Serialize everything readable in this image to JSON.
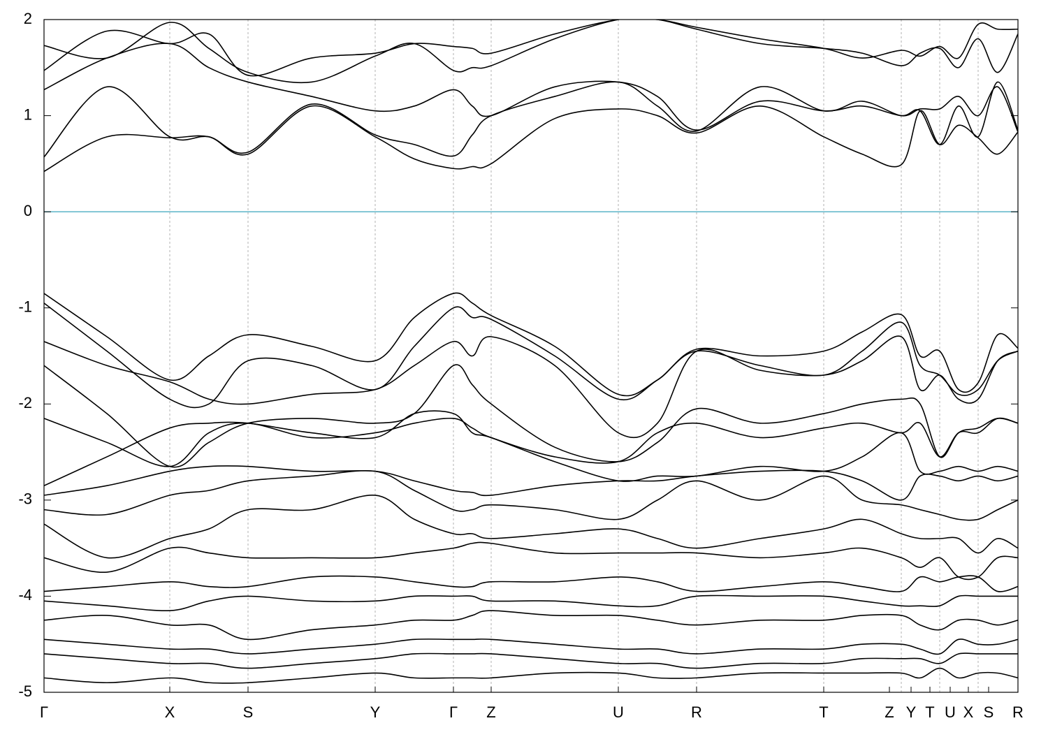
{
  "chart_data": {
    "type": "line",
    "color": "#000000",
    "xlim": [
      0,
      139.4
    ],
    "ylim": [
      -5,
      2
    ],
    "yticks": [
      -5,
      -4,
      -3,
      -2,
      -1,
      0,
      1,
      2
    ],
    "xticks": [
      {
        "value": 0,
        "label": "Γ"
      },
      {
        "value": 18.0,
        "label": "X"
      },
      {
        "value": 29.2,
        "label": "S"
      },
      {
        "value": 47.4,
        "label": "Y"
      },
      {
        "value": 58.6,
        "label": "Γ"
      },
      {
        "value": 64.0,
        "label": "Z"
      },
      {
        "value": 82.2,
        "label": "U"
      },
      {
        "value": 93.4,
        "label": "R"
      },
      {
        "value": 111.6,
        "label": "T"
      },
      {
        "value": 121.0,
        "label": "Z"
      },
      {
        "value": 124.1,
        "label": "Y"
      },
      {
        "value": 126.8,
        "label": "T"
      },
      {
        "value": 129.7,
        "label": "U"
      },
      {
        "value": 132.3,
        "label": "X"
      },
      {
        "value": 135.2,
        "label": "S"
      },
      {
        "value": 139.4,
        "label": "R"
      }
    ],
    "segment_lines": [
      18.0,
      29.2,
      47.4,
      58.6,
      64.0,
      82.2,
      93.4,
      111.6,
      122.7,
      128.2,
      133.7
    ],
    "fermi_level": {
      "value": 0,
      "color": "#5ab4c8"
    },
    "x": [
      0,
      9,
      18,
      23.6,
      29.2,
      38.3,
      47.4,
      53,
      58.6,
      61.3,
      64,
      73.1,
      82.2,
      87.8,
      93.4,
      102.5,
      111.6,
      117.1,
      122.7,
      125.4,
      128.2,
      130.9,
      133.7,
      136.5,
      139.4
    ],
    "series": [
      {
        "values": [
          0.42,
          0.78,
          0.77,
          0.78,
          0.6,
          1.1,
          0.78,
          0.55,
          0.45,
          0.47,
          0.5,
          0.97,
          1.07,
          1.0,
          0.82,
          1.1,
          0.78,
          0.6,
          0.49,
          1.05,
          0.7,
          0.9,
          0.77,
          0.6,
          0.83
        ]
      },
      {
        "values": [
          0.57,
          1.3,
          0.78,
          0.78,
          0.62,
          1.12,
          0.8,
          0.7,
          0.58,
          0.8,
          1.0,
          1.2,
          1.35,
          1.1,
          0.84,
          1.3,
          1.05,
          1.15,
          1.0,
          1.07,
          1.07,
          1.2,
          1.0,
          1.3,
          0.83
        ]
      },
      {
        "values": [
          1.27,
          1.6,
          1.75,
          1.5,
          1.35,
          1.2,
          1.05,
          1.1,
          1.27,
          1.1,
          1.0,
          1.3,
          1.35,
          1.2,
          0.85,
          1.15,
          1.05,
          1.1,
          1.0,
          1.05,
          0.7,
          1.1,
          0.78,
          1.35,
          0.85
        ]
      },
      {
        "values": [
          1.73,
          1.6,
          1.97,
          1.7,
          1.45,
          1.35,
          1.62,
          1.75,
          1.47,
          1.5,
          1.52,
          1.8,
          2.0,
          2.0,
          1.9,
          1.75,
          1.7,
          1.65,
          1.52,
          1.65,
          1.7,
          1.5,
          1.8,
          1.45,
          1.85
        ]
      },
      {
        "values": [
          1.47,
          1.88,
          1.75,
          1.85,
          1.42,
          1.6,
          1.65,
          1.75,
          1.72,
          1.7,
          1.65,
          1.85,
          2.0,
          2.0,
          1.92,
          1.8,
          1.7,
          1.6,
          1.68,
          1.62,
          1.72,
          1.6,
          1.95,
          1.9,
          1.9
        ]
      },
      {
        "values": [
          -0.85,
          -1.3,
          -1.75,
          -1.5,
          -1.28,
          -1.4,
          -1.55,
          -1.1,
          -0.85,
          -0.95,
          -1.08,
          -1.4,
          -1.9,
          -1.75,
          -1.43,
          -1.5,
          -1.45,
          -1.25,
          -1.07,
          -1.5,
          -1.45,
          -1.85,
          -1.78,
          -1.28,
          -1.42
        ]
      },
      {
        "values": [
          -0.95,
          -1.45,
          -1.95,
          -2.0,
          -1.55,
          -1.6,
          -1.85,
          -1.4,
          -1.0,
          -1.1,
          -1.12,
          -1.5,
          -1.95,
          -1.75,
          -1.45,
          -1.6,
          -1.7,
          -1.45,
          -1.15,
          -1.6,
          -1.7,
          -1.9,
          -1.85,
          -1.55,
          -1.45
        ]
      },
      {
        "values": [
          -1.35,
          -1.6,
          -1.77,
          -1.95,
          -2.0,
          -1.9,
          -1.85,
          -1.6,
          -1.35,
          -1.5,
          -1.3,
          -1.6,
          -2.3,
          -2.2,
          -1.45,
          -1.65,
          -1.7,
          -1.55,
          -1.3,
          -1.85,
          -1.7,
          -1.95,
          -1.95,
          -1.55,
          -1.45
        ]
      },
      {
        "values": [
          -1.6,
          -2.1,
          -2.65,
          -2.4,
          -2.2,
          -2.15,
          -2.2,
          -2.1,
          -1.6,
          -1.8,
          -2.0,
          -2.45,
          -2.6,
          -2.4,
          -2.05,
          -2.2,
          -2.1,
          -2.0,
          -1.95,
          -2.0,
          -2.55,
          -2.3,
          -2.25,
          -2.15,
          -2.2
        ]
      },
      {
        "values": [
          -2.15,
          -2.4,
          -2.65,
          -2.3,
          -2.2,
          -2.35,
          -2.3,
          -2.2,
          -2.15,
          -2.25,
          -2.35,
          -2.55,
          -2.6,
          -2.3,
          -2.2,
          -2.35,
          -2.25,
          -2.2,
          -2.3,
          -2.2,
          -2.55,
          -2.3,
          -2.3,
          -2.15,
          -2.2
        ]
      },
      {
        "values": [
          -2.85,
          -2.55,
          -2.25,
          -2.2,
          -2.2,
          -2.3,
          -2.35,
          -2.1,
          -2.1,
          -2.3,
          -2.35,
          -2.6,
          -2.8,
          -2.75,
          -2.75,
          -2.65,
          -2.7,
          -2.55,
          -2.3,
          -2.7,
          -2.7,
          -2.65,
          -2.7,
          -2.65,
          -2.7
        ]
      },
      {
        "values": [
          -2.95,
          -2.85,
          -2.7,
          -2.65,
          -2.65,
          -2.7,
          -2.7,
          -2.8,
          -2.9,
          -2.92,
          -2.95,
          -2.85,
          -2.8,
          -2.8,
          -2.75,
          -2.7,
          -2.7,
          -2.8,
          -3.0,
          -2.75,
          -2.75,
          -2.8,
          -2.75,
          -2.8,
          -2.75
        ]
      },
      {
        "values": [
          -3.1,
          -3.15,
          -2.95,
          -2.9,
          -2.8,
          -2.75,
          -2.7,
          -2.9,
          -3.1,
          -3.1,
          -3.05,
          -3.1,
          -3.2,
          -3.0,
          -2.8,
          -3.0,
          -2.75,
          -3.0,
          -3.05,
          -3.1,
          -3.15,
          -3.2,
          -3.2,
          -3.1,
          -3.0
        ]
      },
      {
        "values": [
          -3.25,
          -3.6,
          -3.4,
          -3.3,
          -3.1,
          -3.1,
          -2.95,
          -3.2,
          -3.35,
          -3.35,
          -3.4,
          -3.35,
          -3.3,
          -3.4,
          -3.5,
          -3.4,
          -3.3,
          -3.2,
          -3.35,
          -3.4,
          -3.4,
          -3.4,
          -3.55,
          -3.4,
          -3.5
        ]
      },
      {
        "values": [
          -3.6,
          -3.75,
          -3.5,
          -3.55,
          -3.6,
          -3.6,
          -3.6,
          -3.55,
          -3.5,
          -3.45,
          -3.45,
          -3.55,
          -3.55,
          -3.55,
          -3.55,
          -3.6,
          -3.55,
          -3.5,
          -3.6,
          -3.7,
          -3.6,
          -3.8,
          -3.8,
          -3.6,
          -3.6
        ]
      },
      {
        "values": [
          -3.95,
          -3.9,
          -3.85,
          -3.9,
          -3.9,
          -3.8,
          -3.8,
          -3.85,
          -3.9,
          -3.9,
          -3.85,
          -3.85,
          -3.8,
          -3.85,
          -3.95,
          -3.9,
          -3.85,
          -3.9,
          -3.95,
          -3.8,
          -3.85,
          -3.8,
          -3.8,
          -3.95,
          -3.9
        ]
      },
      {
        "values": [
          -4.05,
          -4.1,
          -4.15,
          -4.05,
          -4.0,
          -4.05,
          -4.05,
          -4.0,
          -4.0,
          -4.0,
          -4.05,
          -4.05,
          -4.1,
          -4.1,
          -4.0,
          -4.0,
          -4.0,
          -4.05,
          -4.1,
          -4.1,
          -4.1,
          -4.0,
          -4.0,
          -4.0,
          -4.0
        ]
      },
      {
        "values": [
          -4.25,
          -4.2,
          -4.3,
          -4.3,
          -4.45,
          -4.35,
          -4.3,
          -4.25,
          -4.25,
          -4.2,
          -4.15,
          -4.2,
          -4.2,
          -4.25,
          -4.3,
          -4.25,
          -4.25,
          -4.2,
          -4.2,
          -4.3,
          -4.35,
          -4.25,
          -4.25,
          -4.3,
          -4.25
        ]
      },
      {
        "values": [
          -4.45,
          -4.5,
          -4.55,
          -4.55,
          -4.6,
          -4.55,
          -4.5,
          -4.45,
          -4.45,
          -4.45,
          -4.45,
          -4.5,
          -4.55,
          -4.55,
          -4.6,
          -4.55,
          -4.55,
          -4.5,
          -4.5,
          -4.55,
          -4.6,
          -4.45,
          -4.5,
          -4.5,
          -4.45
        ]
      },
      {
        "values": [
          -4.6,
          -4.65,
          -4.7,
          -4.7,
          -4.75,
          -4.7,
          -4.65,
          -4.6,
          -4.6,
          -4.6,
          -4.6,
          -4.65,
          -4.7,
          -4.7,
          -4.75,
          -4.7,
          -4.7,
          -4.65,
          -4.65,
          -4.65,
          -4.7,
          -4.6,
          -4.6,
          -4.6,
          -4.6
        ]
      },
      {
        "values": [
          -4.85,
          -4.9,
          -4.85,
          -4.9,
          -4.9,
          -4.85,
          -4.8,
          -4.85,
          -4.85,
          -4.85,
          -4.85,
          -4.8,
          -4.8,
          -4.85,
          -4.85,
          -4.8,
          -4.8,
          -4.8,
          -4.8,
          -4.85,
          -4.75,
          -4.85,
          -4.8,
          -4.8,
          -4.85
        ]
      }
    ]
  }
}
